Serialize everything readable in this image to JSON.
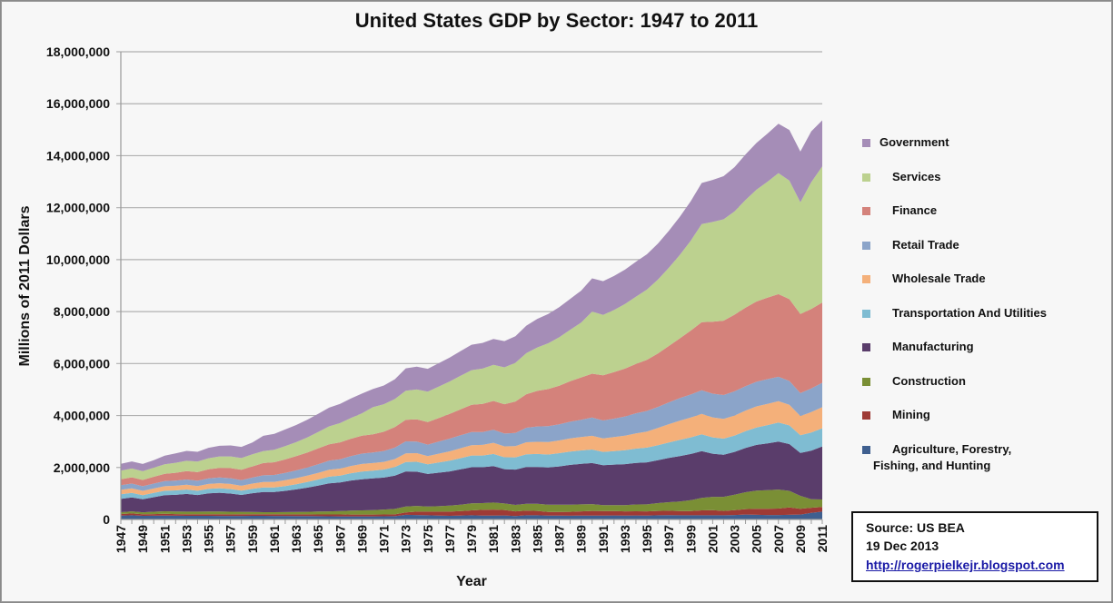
{
  "chart_data": {
    "type": "area",
    "stacked": true,
    "title": "United States GDP by Sector: 1947 to 2011",
    "xlabel": "Year",
    "ylabel": "Millions of 2011 Dollars",
    "ylim": [
      0,
      18000000
    ],
    "yticks": [
      0,
      2000000,
      4000000,
      6000000,
      8000000,
      10000000,
      12000000,
      14000000,
      16000000,
      18000000
    ],
    "ytick_labels": [
      "0",
      "2,000,000",
      "4,000,000",
      "6,000,000",
      "8,000,000",
      "10,000,000",
      "12,000,000",
      "14,000,000",
      "16,000,000",
      "18,000,000"
    ],
    "xtick_labels": [
      "1947",
      "1949",
      "1951",
      "1953",
      "1955",
      "1957",
      "1959",
      "1961",
      "1963",
      "1965",
      "1967",
      "1969",
      "1971",
      "1973",
      "1975",
      "1977",
      "1979",
      "1981",
      "1983",
      "1985",
      "1987",
      "1989",
      "1991",
      "1993",
      "1995",
      "1997",
      "1999",
      "2001",
      "2003",
      "2005",
      "2007",
      "2009",
      "2011"
    ],
    "grid": "horizontal",
    "legend_position": "right",
    "x": [
      1947,
      1948,
      1949,
      1950,
      1951,
      1952,
      1953,
      1954,
      1955,
      1956,
      1957,
      1958,
      1959,
      1960,
      1961,
      1962,
      1963,
      1964,
      1965,
      1966,
      1967,
      1968,
      1969,
      1970,
      1971,
      1972,
      1973,
      1974,
      1975,
      1976,
      1977,
      1978,
      1979,
      1980,
      1981,
      1982,
      1983,
      1984,
      1985,
      1986,
      1987,
      1988,
      1989,
      1990,
      1991,
      1992,
      1993,
      1994,
      1995,
      1996,
      1997,
      1998,
      1999,
      2000,
      2001,
      2002,
      2003,
      2004,
      2005,
      2006,
      2007,
      2008,
      2009,
      2010,
      2011
    ],
    "series": [
      {
        "name": "Agriculture, Forestry, Fishing, and Hunting",
        "color": "#3f5f8f",
        "values": [
          150000,
          160000,
          140000,
          145000,
          150000,
          145000,
          140000,
          140000,
          140000,
          138000,
          135000,
          138000,
          140000,
          140000,
          138000,
          135000,
          132000,
          128000,
          125000,
          122000,
          120000,
          118000,
          120000,
          120000,
          122000,
          125000,
          180000,
          170000,
          160000,
          150000,
          140000,
          150000,
          160000,
          150000,
          150000,
          155000,
          130000,
          160000,
          160000,
          150000,
          150000,
          145000,
          150000,
          150000,
          150000,
          155000,
          150000,
          155000,
          150000,
          160000,
          165000,
          160000,
          160000,
          160000,
          160000,
          160000,
          170000,
          190000,
          180000,
          170000,
          170000,
          180000,
          190000,
          250000,
          300000
        ]
      },
      {
        "name": "Mining",
        "color": "#9e3a35",
        "values": [
          60000,
          70000,
          60000,
          62000,
          65000,
          62000,
          62000,
          60000,
          62000,
          63000,
          62000,
          60000,
          60000,
          60000,
          60000,
          62000,
          64000,
          66000,
          68000,
          70000,
          72000,
          70000,
          70000,
          70000,
          70000,
          70000,
          90000,
          130000,
          140000,
          150000,
          160000,
          170000,
          190000,
          220000,
          230000,
          210000,
          180000,
          180000,
          170000,
          140000,
          140000,
          150000,
          160000,
          180000,
          170000,
          165000,
          160000,
          160000,
          160000,
          170000,
          170000,
          160000,
          160000,
          190000,
          200000,
          170000,
          190000,
          210000,
          230000,
          240000,
          250000,
          280000,
          220000,
          200000,
          180000
        ]
      },
      {
        "name": "Construction",
        "color": "#7a8f35",
        "values": [
          70000,
          80000,
          75000,
          90000,
          100000,
          100000,
          100000,
          100000,
          105000,
          105000,
          100000,
          95000,
          90000,
          80000,
          80000,
          85000,
          90000,
          100000,
          110000,
          120000,
          130000,
          150000,
          160000,
          170000,
          190000,
          210000,
          230000,
          220000,
          200000,
          210000,
          230000,
          250000,
          270000,
          260000,
          270000,
          250000,
          250000,
          260000,
          270000,
          280000,
          280000,
          275000,
          270000,
          260000,
          230000,
          230000,
          240000,
          260000,
          270000,
          300000,
          330000,
          370000,
          420000,
          480000,
          510000,
          540000,
          590000,
          650000,
          700000,
          720000,
          730000,
          640000,
          500000,
          330000,
          290000
        ]
      },
      {
        "name": "Manufacturing",
        "color": "#5a3d6b",
        "values": [
          510000,
          540000,
          500000,
          560000,
          620000,
          640000,
          680000,
          640000,
          700000,
          720000,
          700000,
          650000,
          720000,
          780000,
          780000,
          820000,
          870000,
          930000,
          1000000,
          1080000,
          1100000,
          1160000,
          1200000,
          1220000,
          1230000,
          1280000,
          1350000,
          1320000,
          1250000,
          1290000,
          1320000,
          1360000,
          1390000,
          1380000,
          1400000,
          1320000,
          1360000,
          1420000,
          1420000,
          1430000,
          1470000,
          1530000,
          1560000,
          1580000,
          1540000,
          1560000,
          1580000,
          1600000,
          1620000,
          1650000,
          1700000,
          1750000,
          1780000,
          1800000,
          1660000,
          1620000,
          1650000,
          1700000,
          1760000,
          1800000,
          1850000,
          1800000,
          1650000,
          1870000,
          2040000
        ]
      },
      {
        "name": "Transportation And Utilities",
        "color": "#7fbcd2",
        "values": [
          180000,
          175000,
          160000,
          165000,
          170000,
          170000,
          170000,
          165000,
          170000,
          175000,
          175000,
          165000,
          170000,
          170000,
          175000,
          185000,
          200000,
          215000,
          235000,
          255000,
          265000,
          280000,
          295000,
          300000,
          310000,
          330000,
          360000,
          380000,
          370000,
          390000,
          410000,
          430000,
          450000,
          450000,
          470000,
          460000,
          470000,
          490000,
          500000,
          500000,
          510000,
          510000,
          515000,
          520000,
          510000,
          520000,
          535000,
          550000,
          565000,
          580000,
          600000,
          620000,
          640000,
          650000,
          630000,
          620000,
          630000,
          650000,
          670000,
          700000,
          730000,
          720000,
          680000,
          700000,
          700000
        ]
      },
      {
        "name": "Wholesale Trade",
        "color": "#f4b07a",
        "values": [
          170000,
          172000,
          165000,
          170000,
          175000,
          178000,
          182000,
          180000,
          190000,
          195000,
          195000,
          190000,
          200000,
          210000,
          215000,
          225000,
          235000,
          245000,
          255000,
          265000,
          270000,
          280000,
          290000,
          290000,
          295000,
          310000,
          335000,
          330000,
          320000,
          340000,
          360000,
          380000,
          400000,
          410000,
          430000,
          420000,
          430000,
          460000,
          470000,
          480000,
          490000,
          510000,
          520000,
          530000,
          520000,
          540000,
          560000,
          590000,
          620000,
          660000,
          700000,
          740000,
          760000,
          780000,
          770000,
          760000,
          770000,
          790000,
          810000,
          820000,
          820000,
          790000,
          740000,
          780000,
          810000
        ]
      },
      {
        "name": "Retail Trade",
        "color": "#8ba4c9",
        "values": [
          180000,
          185000,
          180000,
          190000,
          195000,
          200000,
          205000,
          205000,
          215000,
          220000,
          220000,
          215000,
          230000,
          260000,
          265000,
          280000,
          295000,
          310000,
          330000,
          350000,
          360000,
          380000,
          400000,
          410000,
          420000,
          440000,
          460000,
          450000,
          440000,
          470000,
          490000,
          500000,
          505000,
          495000,
          500000,
          490000,
          510000,
          560000,
          590000,
          610000,
          620000,
          640000,
          660000,
          700000,
          690000,
          710000,
          740000,
          770000,
          790000,
          810000,
          840000,
          870000,
          890000,
          910000,
          910000,
          920000,
          930000,
          940000,
          950000,
          950000,
          940000,
          920000,
          880000,
          910000,
          940000
        ]
      },
      {
        "name": "Finance",
        "color": "#d4827b",
        "values": [
          230000,
          240000,
          240000,
          260000,
          280000,
          300000,
          320000,
          330000,
          350000,
          370000,
          390000,
          400000,
          430000,
          470000,
          490000,
          520000,
          550000,
          580000,
          610000,
          630000,
          650000,
          670000,
          690000,
          700000,
          740000,
          790000,
          830000,
          850000,
          870000,
          900000,
          950000,
          1000000,
          1050000,
          1080000,
          1110000,
          1130000,
          1210000,
          1290000,
          1370000,
          1430000,
          1490000,
          1560000,
          1630000,
          1690000,
          1740000,
          1790000,
          1840000,
          1900000,
          1970000,
          2060000,
          2170000,
          2300000,
          2460000,
          2620000,
          2770000,
          2860000,
          2950000,
          3020000,
          3090000,
          3140000,
          3180000,
          3150000,
          3050000,
          3060000,
          3090000
        ]
      },
      {
        "name": "Services",
        "color": "#bcd18f",
        "values": [
          330000,
          340000,
          335000,
          350000,
          370000,
          385000,
          400000,
          405000,
          425000,
          440000,
          450000,
          450000,
          470000,
          460000,
          480000,
          510000,
          540000,
          580000,
          630000,
          690000,
          740000,
          800000,
          860000,
          1040000,
          1060000,
          1080000,
          1120000,
          1150000,
          1170000,
          1210000,
          1250000,
          1290000,
          1330000,
          1360000,
          1390000,
          1420000,
          1490000,
          1580000,
          1670000,
          1760000,
          1860000,
          1980000,
          2110000,
          2390000,
          2320000,
          2390000,
          2490000,
          2590000,
          2700000,
          2840000,
          3010000,
          3210000,
          3460000,
          3780000,
          3840000,
          3900000,
          3980000,
          4150000,
          4300000,
          4460000,
          4660000,
          4560000,
          4300000,
          4880000,
          5240000
        ]
      },
      {
        "name": "Government",
        "color": "#a58db7",
        "values": [
          260000,
          270000,
          280000,
          290000,
          330000,
          360000,
          380000,
          380000,
          400000,
          410000,
          420000,
          430000,
          450000,
          590000,
          610000,
          640000,
          660000,
          680000,
          700000,
          720000,
          740000,
          750000,
          760000,
          700000,
          720000,
          760000,
          860000,
          880000,
          880000,
          900000,
          920000,
          950000,
          980000,
          990000,
          1000000,
          1010000,
          1020000,
          1060000,
          1100000,
          1130000,
          1160000,
          1190000,
          1230000,
          1280000,
          1300000,
          1310000,
          1320000,
          1340000,
          1360000,
          1390000,
          1420000,
          1470000,
          1520000,
          1580000,
          1620000,
          1660000,
          1700000,
          1750000,
          1800000,
          1850000,
          1900000,
          1950000,
          1950000,
          1960000,
          1770000
        ]
      }
    ]
  },
  "legend": {
    "items": [
      {
        "label": "Government",
        "color": "#a58db7"
      },
      {
        "label": "Services",
        "color": "#bcd18f"
      },
      {
        "label": "Finance",
        "color": "#d4827b"
      },
      {
        "label": "Retail Trade",
        "color": "#8ba4c9"
      },
      {
        "label": "Wholesale Trade",
        "color": "#f4b07a"
      },
      {
        "label": "Transportation And Utilities",
        "color": "#7fbcd2"
      },
      {
        "label": "Manufacturing",
        "color": "#5a3d6b"
      },
      {
        "label": "Construction",
        "color": "#7a8f35"
      },
      {
        "label": "Mining",
        "color": "#9e3a35"
      },
      {
        "label": "Agriculture, Forestry,",
        "label2": "Fishing, and Hunting",
        "color": "#3f5f8f"
      }
    ]
  },
  "source": {
    "line1": "Source: US BEA",
    "line2": "19 Dec 2013",
    "link": "http://rogerpielkejr.blogspot.com"
  }
}
